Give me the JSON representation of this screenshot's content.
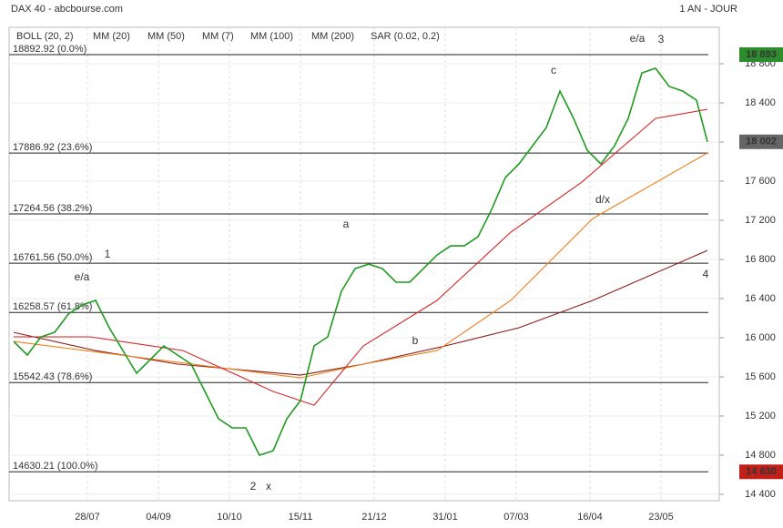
{
  "chart_data": {
    "type": "line",
    "title": "DAX 40 - abcbourse.com",
    "subtitle": "1 AN - JOUR",
    "legend": [
      {
        "name": "BOLL (20, 2)",
        "color": "#444444"
      },
      {
        "name": "MM (20)",
        "color": "#3a7bd5"
      },
      {
        "name": "MM (50)",
        "color": "#d62728"
      },
      {
        "name": "MM (7)",
        "color": "#2e8b2e"
      },
      {
        "name": "MM (100)",
        "color": "#f07f1a"
      },
      {
        "name": "MM (200)",
        "color": "#8b1a1a"
      },
      {
        "name": "SAR (0.02, 0.2)",
        "color": "#d62728"
      }
    ],
    "xlim": [
      0,
      255
    ],
    "xticks": [
      {
        "value": 27,
        "label": "28/07"
      },
      {
        "value": 53,
        "label": "04/09"
      },
      {
        "value": 79,
        "label": "10/10"
      },
      {
        "value": 105,
        "label": "15/11"
      },
      {
        "value": 132,
        "label": "21/12"
      },
      {
        "value": 158,
        "label": "31/01"
      },
      {
        "value": 184,
        "label": "07/03"
      },
      {
        "value": 211,
        "label": "16/04"
      },
      {
        "value": 237,
        "label": "23/05"
      }
    ],
    "ylim": [
      14335,
      19172
    ],
    "yticks": [
      {
        "value": 14400,
        "label": "14 400"
      },
      {
        "value": 14800,
        "label": "14 800"
      },
      {
        "value": 15200,
        "label": "15 200"
      },
      {
        "value": 15600,
        "label": "15 600"
      },
      {
        "value": 16000,
        "label": "16 000"
      },
      {
        "value": 16400,
        "label": "16 400"
      },
      {
        "value": 16800,
        "label": "16 800"
      },
      {
        "value": 17200,
        "label": "17 200"
      },
      {
        "value": 17600,
        "label": "17 600"
      },
      {
        "value": 18000,
        "label": "18 000"
      },
      {
        "value": 18400,
        "label": "18 400"
      },
      {
        "value": 18800,
        "label": "18 800"
      }
    ],
    "grid": true,
    "series": [
      {
        "name": "DAX 40",
        "color": "#1f9a1f",
        "x": [
          0,
          5,
          10,
          15,
          20,
          25,
          30,
          35,
          40,
          45,
          50,
          55,
          60,
          65,
          70,
          75,
          80,
          85,
          90,
          95,
          100,
          105,
          110,
          115,
          120,
          125,
          130,
          135,
          140,
          145,
          150,
          155,
          160,
          165,
          170,
          175,
          180,
          185,
          190,
          195,
          200,
          205,
          210,
          215,
          220,
          225,
          230,
          235,
          240,
          245,
          250,
          254
        ],
        "values": [
          15962,
          15823,
          16009,
          16055,
          16241,
          16334,
          16381,
          16102,
          15869,
          15637,
          15776,
          15916,
          15823,
          15730,
          15451,
          15172,
          15079,
          15079,
          14800,
          14846,
          15172,
          15358,
          15916,
          16009,
          16474,
          16706,
          16753,
          16706,
          16567,
          16567,
          16706,
          16846,
          16939,
          16939,
          17032,
          17311,
          17636,
          17776,
          17962,
          18148,
          18520,
          18241,
          17915,
          17776,
          17962,
          18241,
          18706,
          18753,
          18567,
          18520,
          18427,
          18002
        ]
      },
      {
        "name": "MM (50)",
        "color": "#d62728",
        "x": [
          0,
          28,
          62,
          95,
          110,
          128,
          155,
          182,
          208,
          235,
          254
        ],
        "values": [
          16009,
          16009,
          15869,
          15451,
          15311,
          15916,
          16381,
          17078,
          17590,
          18241,
          18334
        ]
      },
      {
        "name": "MM (100)",
        "color": "#f07f1a",
        "x": [
          0,
          105,
          128,
          155,
          182,
          212,
          254
        ],
        "values": [
          15962,
          15590,
          15730,
          15869,
          16381,
          17218,
          17888
        ]
      },
      {
        "name": "MM (200)",
        "color": "#8b1a1a",
        "x": [
          0,
          30,
          60,
          105,
          128,
          158,
          185,
          212,
          254
        ],
        "values": [
          16055,
          15869,
          15730,
          15618,
          15730,
          15916,
          16102,
          16381,
          16892
        ]
      }
    ],
    "levels": [
      {
        "value": 18892.92,
        "label": "18892.92  (0.0%)"
      },
      {
        "value": 17886.92,
        "label": "17886.92  (23.6%)"
      },
      {
        "value": 17264.56,
        "label": "17264.56  (38.2%)"
      },
      {
        "value": 16761.56,
        "label": "16761.56  (50.0%)"
      },
      {
        "value": 16258.57,
        "label": "16258.57  (61.8%)"
      },
      {
        "value": 15542.43,
        "label": "15542.43  (78.6%)"
      },
      {
        "value": 14630.21,
        "label": "14630.21  (100.0%)"
      }
    ],
    "price_tags": [
      {
        "value": 18893,
        "label": "18 893",
        "color": "#2e8b2e"
      },
      {
        "value": 18002,
        "label": "18 002",
        "color": "#666666"
      },
      {
        "value": 14630,
        "label": "14 630",
        "color": "#c0201a"
      }
    ],
    "annotations": [
      "1",
      "e/a",
      "2",
      "x",
      "a",
      "b",
      "c",
      "d/x",
      "e/a",
      "3",
      "4"
    ]
  }
}
